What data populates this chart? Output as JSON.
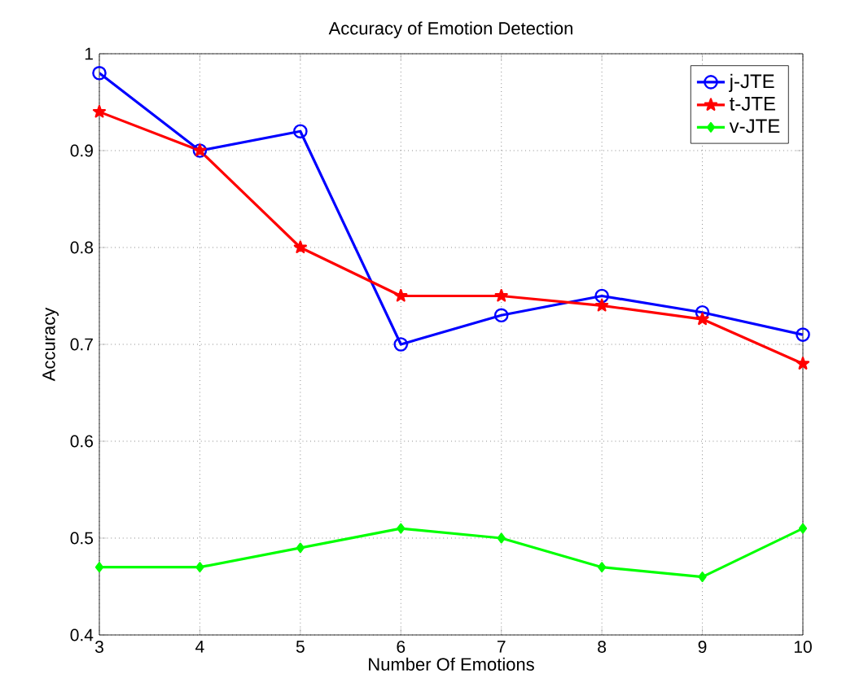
{
  "chart_data": {
    "type": "line",
    "title": "Accuracy of Emotion Detection",
    "xlabel": "Number Of Emotions",
    "ylabel": "Accuracy",
    "x": [
      3,
      4,
      5,
      6,
      7,
      8,
      9,
      10
    ],
    "series": [
      {
        "name": "j-JTE",
        "color": "#0000ff",
        "marker": "circle",
        "values": [
          0.98,
          0.9,
          0.92,
          0.7,
          0.73,
          0.75,
          0.733,
          0.71
        ]
      },
      {
        "name": "t-JTE",
        "color": "#ff0000",
        "marker": "star",
        "values": [
          0.94,
          0.9,
          0.8,
          0.75,
          0.75,
          0.74,
          0.726,
          0.68
        ]
      },
      {
        "name": "v-JTE",
        "color": "#00ff00",
        "marker": "diamond",
        "values": [
          0.47,
          0.47,
          0.49,
          0.51,
          0.5,
          0.47,
          0.46,
          0.51
        ]
      }
    ],
    "xlim": [
      3,
      10
    ],
    "xticks": [
      3,
      4,
      5,
      6,
      7,
      8,
      9,
      10
    ],
    "ylim": [
      0.4,
      1
    ],
    "yticks": [
      0.4,
      0.5,
      0.6,
      0.7,
      0.8,
      0.9,
      1
    ],
    "grid": true,
    "legend": "top right",
    "line_style": "solid"
  }
}
